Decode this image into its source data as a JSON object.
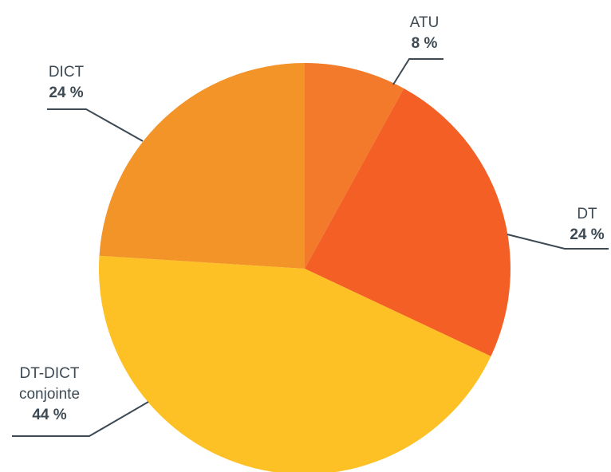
{
  "chart_data": {
    "type": "pie",
    "categories": [
      "ATU",
      "DT",
      "DT-DICT conjointe",
      "DICT"
    ],
    "values": [
      8,
      24,
      44,
      24
    ],
    "value_labels": [
      "8 %",
      "24 %",
      "44 %",
      "24 %"
    ],
    "colors": [
      "#f37a2b",
      "#f45f25",
      "#fdc025",
      "#f39429"
    ]
  }
}
